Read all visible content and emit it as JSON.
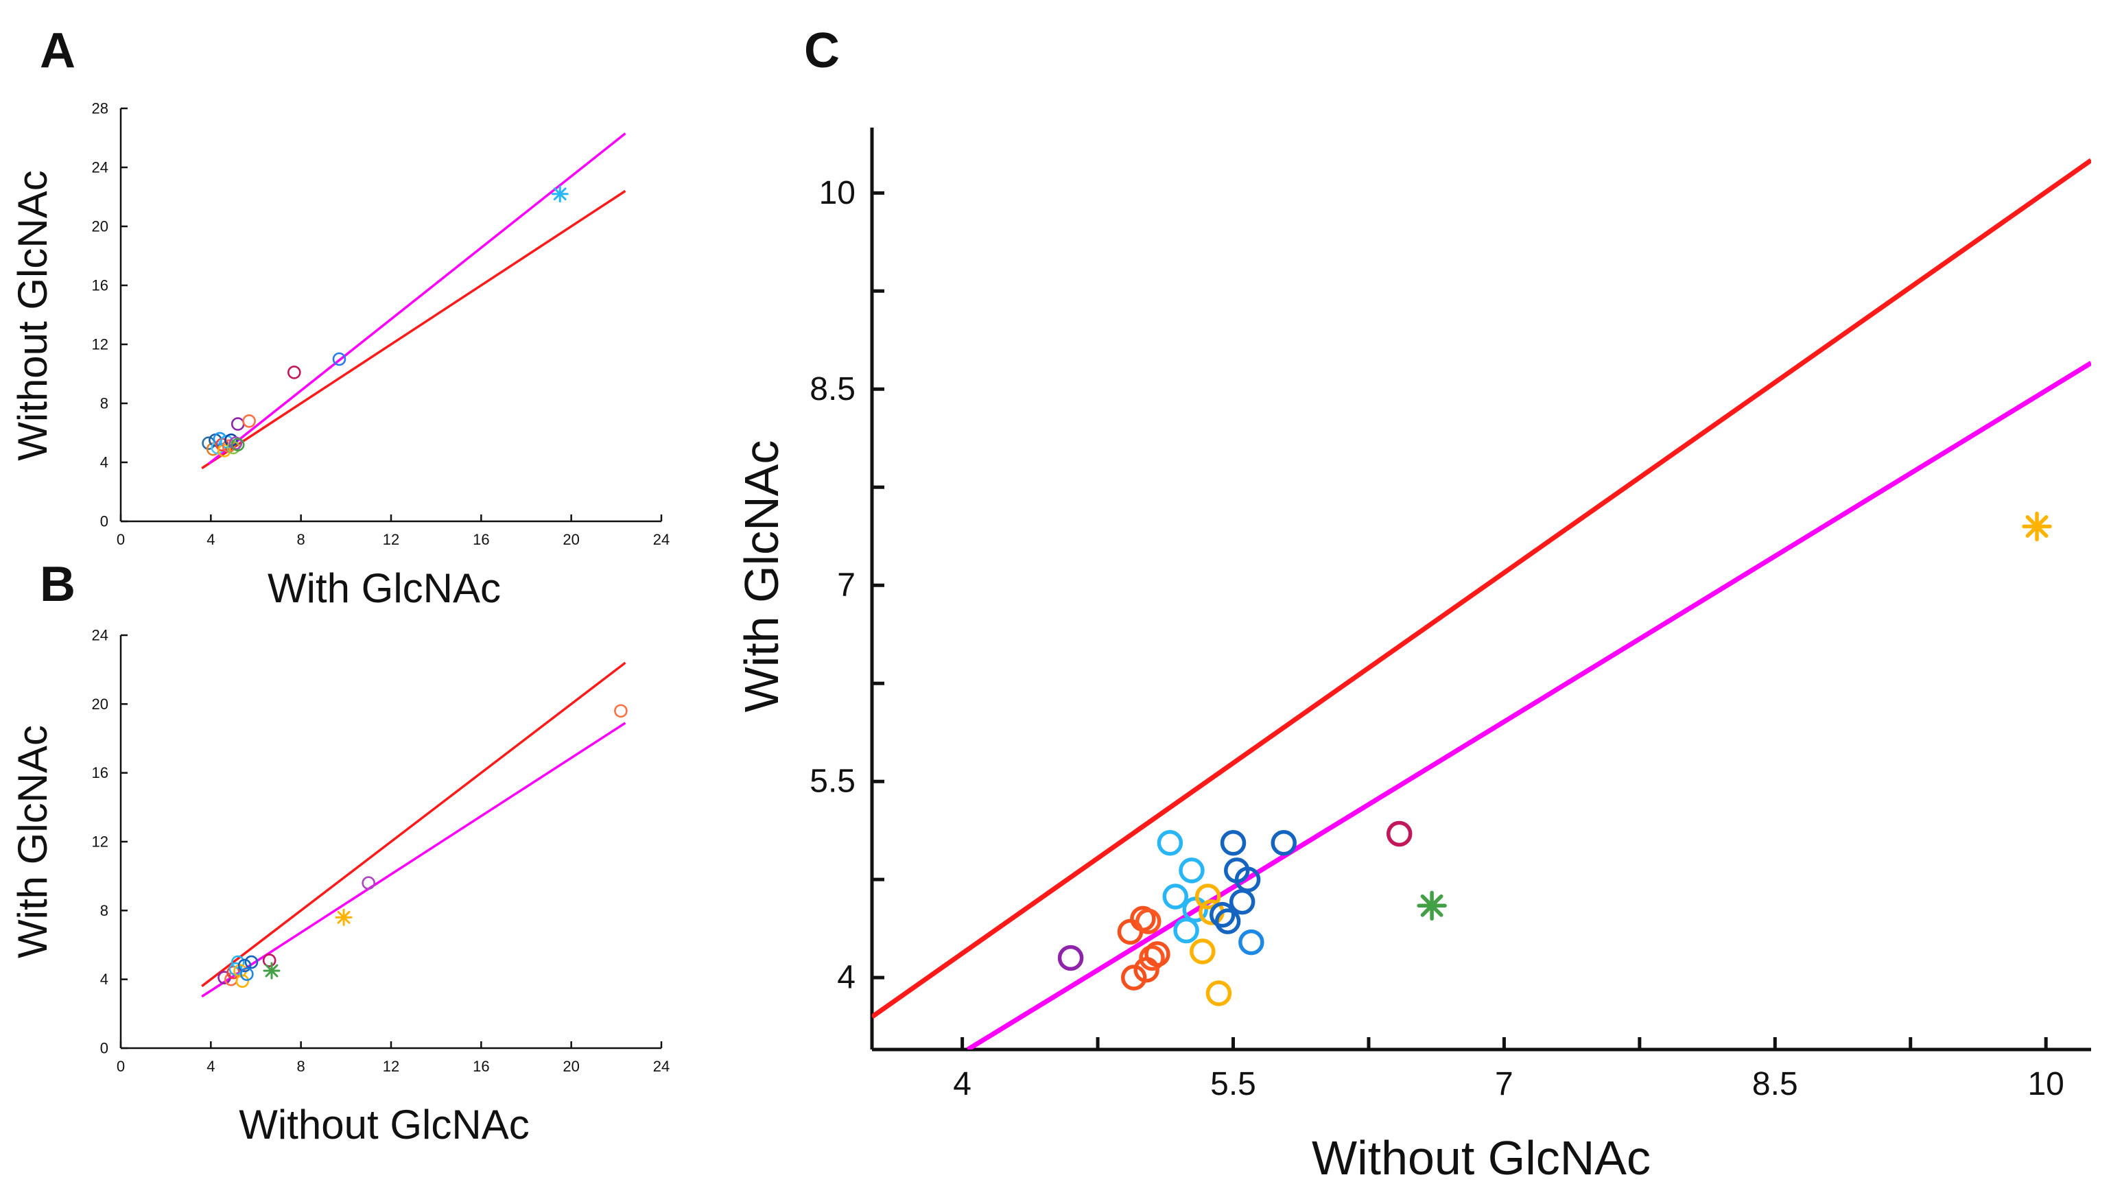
{
  "figure": {
    "colors": {
      "red_line": "#ff1a1a",
      "magenta_line": "#ff00ff",
      "axis": "#111111"
    }
  },
  "chart_data": [
    {
      "panel": "A",
      "type": "scatter",
      "xlabel": "With GlcNAc",
      "ylabel": "Without GlcNAc",
      "xlim": [
        0,
        24
      ],
      "ylim": [
        0,
        28
      ],
      "xticks": [
        0,
        4,
        8,
        12,
        16,
        20,
        24
      ],
      "yticks": [
        0,
        4,
        8,
        12,
        16,
        20,
        24,
        28
      ],
      "lines": [
        {
          "name": "red",
          "color": "#ff1a1a",
          "x": [
            3.6,
            22.4
          ],
          "y": [
            3.6,
            22.4
          ]
        },
        {
          "name": "magenta",
          "color": "#ff00ff",
          "x": [
            3.9,
            22.4
          ],
          "y": [
            3.9,
            26.3
          ]
        }
      ],
      "points": [
        {
          "x": 3.9,
          "y": 5.3,
          "color": "#2c6fa8",
          "marker": "o"
        },
        {
          "x": 4.1,
          "y": 4.9,
          "color": "#e67e22",
          "marker": "o"
        },
        {
          "x": 4.2,
          "y": 5.5,
          "color": "#1a5fa0",
          "marker": "o"
        },
        {
          "x": 4.3,
          "y": 5.0,
          "color": "#4fc3f7",
          "marker": "o"
        },
        {
          "x": 4.4,
          "y": 5.6,
          "color": "#2196f3",
          "marker": "o"
        },
        {
          "x": 4.5,
          "y": 5.2,
          "color": "#f44336",
          "marker": "o"
        },
        {
          "x": 4.6,
          "y": 4.8,
          "color": "#ffb300",
          "marker": "o"
        },
        {
          "x": 4.7,
          "y": 5.4,
          "color": "#29b6f6",
          "marker": "o"
        },
        {
          "x": 4.8,
          "y": 5.1,
          "color": "#ff7043",
          "marker": "o"
        },
        {
          "x": 4.9,
          "y": 5.5,
          "color": "#0d47a1",
          "marker": "o"
        },
        {
          "x": 5.0,
          "y": 5.0,
          "color": "#8bc34a",
          "marker": "o"
        },
        {
          "x": 5.1,
          "y": 5.3,
          "color": "#ab47bc",
          "marker": "o"
        },
        {
          "x": 5.2,
          "y": 5.2,
          "color": "#43a047",
          "marker": "o"
        },
        {
          "x": 5.2,
          "y": 6.6,
          "color": "#8e24aa",
          "marker": "o"
        },
        {
          "x": 5.7,
          "y": 6.8,
          "color": "#ff7043",
          "marker": "o"
        },
        {
          "x": 7.7,
          "y": 10.1,
          "color": "#c2185b",
          "marker": "o"
        },
        {
          "x": 9.7,
          "y": 11.0,
          "color": "#2979ff",
          "marker": "o"
        },
        {
          "x": 19.5,
          "y": 22.2,
          "color": "#29b6f6",
          "marker": "*"
        }
      ]
    },
    {
      "panel": "B",
      "type": "scatter",
      "xlabel": "Without GlcNAc",
      "ylabel": "With GlcNAc",
      "xlim": [
        0,
        24
      ],
      "ylim": [
        0,
        24
      ],
      "xticks": [
        0,
        4,
        8,
        12,
        16,
        20,
        24
      ],
      "yticks": [
        0,
        4,
        8,
        12,
        16,
        20,
        24
      ],
      "lines": [
        {
          "name": "red",
          "color": "#ff1a1a",
          "x": [
            3.6,
            22.4
          ],
          "y": [
            3.6,
            22.4
          ]
        },
        {
          "name": "magenta",
          "color": "#ff00ff",
          "x": [
            3.6,
            22.4
          ],
          "y": [
            3.0,
            18.9
          ]
        }
      ],
      "points": [
        {
          "x": 4.6,
          "y": 4.1,
          "color": "#8e24aa",
          "marker": "o"
        },
        {
          "x": 4.9,
          "y": 4.0,
          "color": "#ff7043",
          "marker": "o"
        },
        {
          "x": 5.0,
          "y": 4.4,
          "color": "#f44336",
          "marker": "o"
        },
        {
          "x": 5.1,
          "y": 4.6,
          "color": "#29b6f6",
          "marker": "o"
        },
        {
          "x": 5.2,
          "y": 5.0,
          "color": "#29b6f6",
          "marker": "o"
        },
        {
          "x": 5.3,
          "y": 4.5,
          "color": "#ffb300",
          "marker": "o"
        },
        {
          "x": 5.4,
          "y": 3.9,
          "color": "#ffb300",
          "marker": "o"
        },
        {
          "x": 5.5,
          "y": 4.8,
          "color": "#1565c0",
          "marker": "o"
        },
        {
          "x": 5.6,
          "y": 4.3,
          "color": "#1e88e5",
          "marker": "o"
        },
        {
          "x": 5.8,
          "y": 5.0,
          "color": "#1565c0",
          "marker": "o"
        },
        {
          "x": 6.6,
          "y": 5.1,
          "color": "#c2185b",
          "marker": "o"
        },
        {
          "x": 6.7,
          "y": 4.5,
          "color": "#43a047",
          "marker": "*"
        },
        {
          "x": 9.9,
          "y": 7.6,
          "color": "#ffb300",
          "marker": "*"
        },
        {
          "x": 11.0,
          "y": 9.6,
          "color": "#ab47bc",
          "marker": "o"
        },
        {
          "x": 22.2,
          "y": 19.6,
          "color": "#ff7043",
          "marker": "o"
        }
      ]
    },
    {
      "panel": "C",
      "type": "scatter",
      "xlabel": "Without GlcNAc",
      "ylabel": "With GlcNAc",
      "xlim": [
        3.5,
        10.25
      ],
      "ylim": [
        3.45,
        10.5
      ],
      "xticks": [
        4,
        5.5,
        7,
        8.5,
        10
      ],
      "xtick_labels": [
        "4",
        "5.5",
        "7",
        "8.5",
        "10"
      ],
      "xminor": [
        4.75,
        6.25,
        7.75,
        9.25
      ],
      "yticks": [
        4,
        5.5,
        7,
        8.5,
        10
      ],
      "ytick_labels": [
        "4",
        "5.5",
        "7",
        "8.5",
        "10"
      ],
      "yminor": [
        4.75,
        6.25,
        7.75,
        9.25
      ],
      "lines": [
        {
          "name": "red",
          "color": "#ff1a1a",
          "x": [
            3.5,
            10.25
          ],
          "y": [
            3.7,
            10.25
          ]
        },
        {
          "name": "magenta",
          "color": "#ff00ff",
          "x": [
            4.03,
            10.25
          ],
          "y": [
            3.45,
            8.7
          ]
        }
      ],
      "points": [
        {
          "x": 4.6,
          "y": 4.15,
          "color": "#8e24aa",
          "marker": "o"
        },
        {
          "x": 4.93,
          "y": 4.35,
          "color": "#f4511e",
          "marker": "o"
        },
        {
          "x": 4.95,
          "y": 4.0,
          "color": "#f4511e",
          "marker": "o"
        },
        {
          "x": 5.0,
          "y": 4.45,
          "color": "#f4511e",
          "marker": "o"
        },
        {
          "x": 5.03,
          "y": 4.43,
          "color": "#ff5722",
          "marker": "o"
        },
        {
          "x": 5.02,
          "y": 4.06,
          "color": "#f4511e",
          "marker": "o"
        },
        {
          "x": 5.05,
          "y": 4.15,
          "color": "#ff5722",
          "marker": "o"
        },
        {
          "x": 5.08,
          "y": 4.18,
          "color": "#f4511e",
          "marker": "o"
        },
        {
          "x": 5.15,
          "y": 5.03,
          "color": "#29b6f6",
          "marker": "o"
        },
        {
          "x": 5.18,
          "y": 4.62,
          "color": "#29b6f6",
          "marker": "o"
        },
        {
          "x": 5.24,
          "y": 4.36,
          "color": "#29b6f6",
          "marker": "o"
        },
        {
          "x": 5.27,
          "y": 4.82,
          "color": "#29b6f6",
          "marker": "o"
        },
        {
          "x": 5.29,
          "y": 4.52,
          "color": "#29b6f6",
          "marker": "o"
        },
        {
          "x": 5.33,
          "y": 4.2,
          "color": "#ffb300",
          "marker": "o"
        },
        {
          "x": 5.36,
          "y": 4.62,
          "color": "#ffb300",
          "marker": "o"
        },
        {
          "x": 5.38,
          "y": 4.5,
          "color": "#ffb300",
          "marker": "o"
        },
        {
          "x": 5.42,
          "y": 3.88,
          "color": "#ffb300",
          "marker": "o"
        },
        {
          "x": 5.44,
          "y": 4.48,
          "color": "#1565c0",
          "marker": "o"
        },
        {
          "x": 5.47,
          "y": 4.43,
          "color": "#1565c0",
          "marker": "o"
        },
        {
          "x": 5.5,
          "y": 5.03,
          "color": "#1565c0",
          "marker": "o"
        },
        {
          "x": 5.52,
          "y": 4.82,
          "color": "#1565c0",
          "marker": "o"
        },
        {
          "x": 5.55,
          "y": 4.58,
          "color": "#1565c0",
          "marker": "o"
        },
        {
          "x": 5.58,
          "y": 4.75,
          "color": "#1565c0",
          "marker": "o"
        },
        {
          "x": 5.6,
          "y": 4.27,
          "color": "#1e88e5",
          "marker": "o"
        },
        {
          "x": 5.78,
          "y": 5.03,
          "color": "#1565c0",
          "marker": "o"
        },
        {
          "x": 6.42,
          "y": 5.1,
          "color": "#c2185b",
          "marker": "o"
        },
        {
          "x": 6.6,
          "y": 4.55,
          "color": "#43a047",
          "marker": "*"
        },
        {
          "x": 9.95,
          "y": 7.45,
          "color": "#ffb300",
          "marker": "*"
        }
      ]
    }
  ]
}
